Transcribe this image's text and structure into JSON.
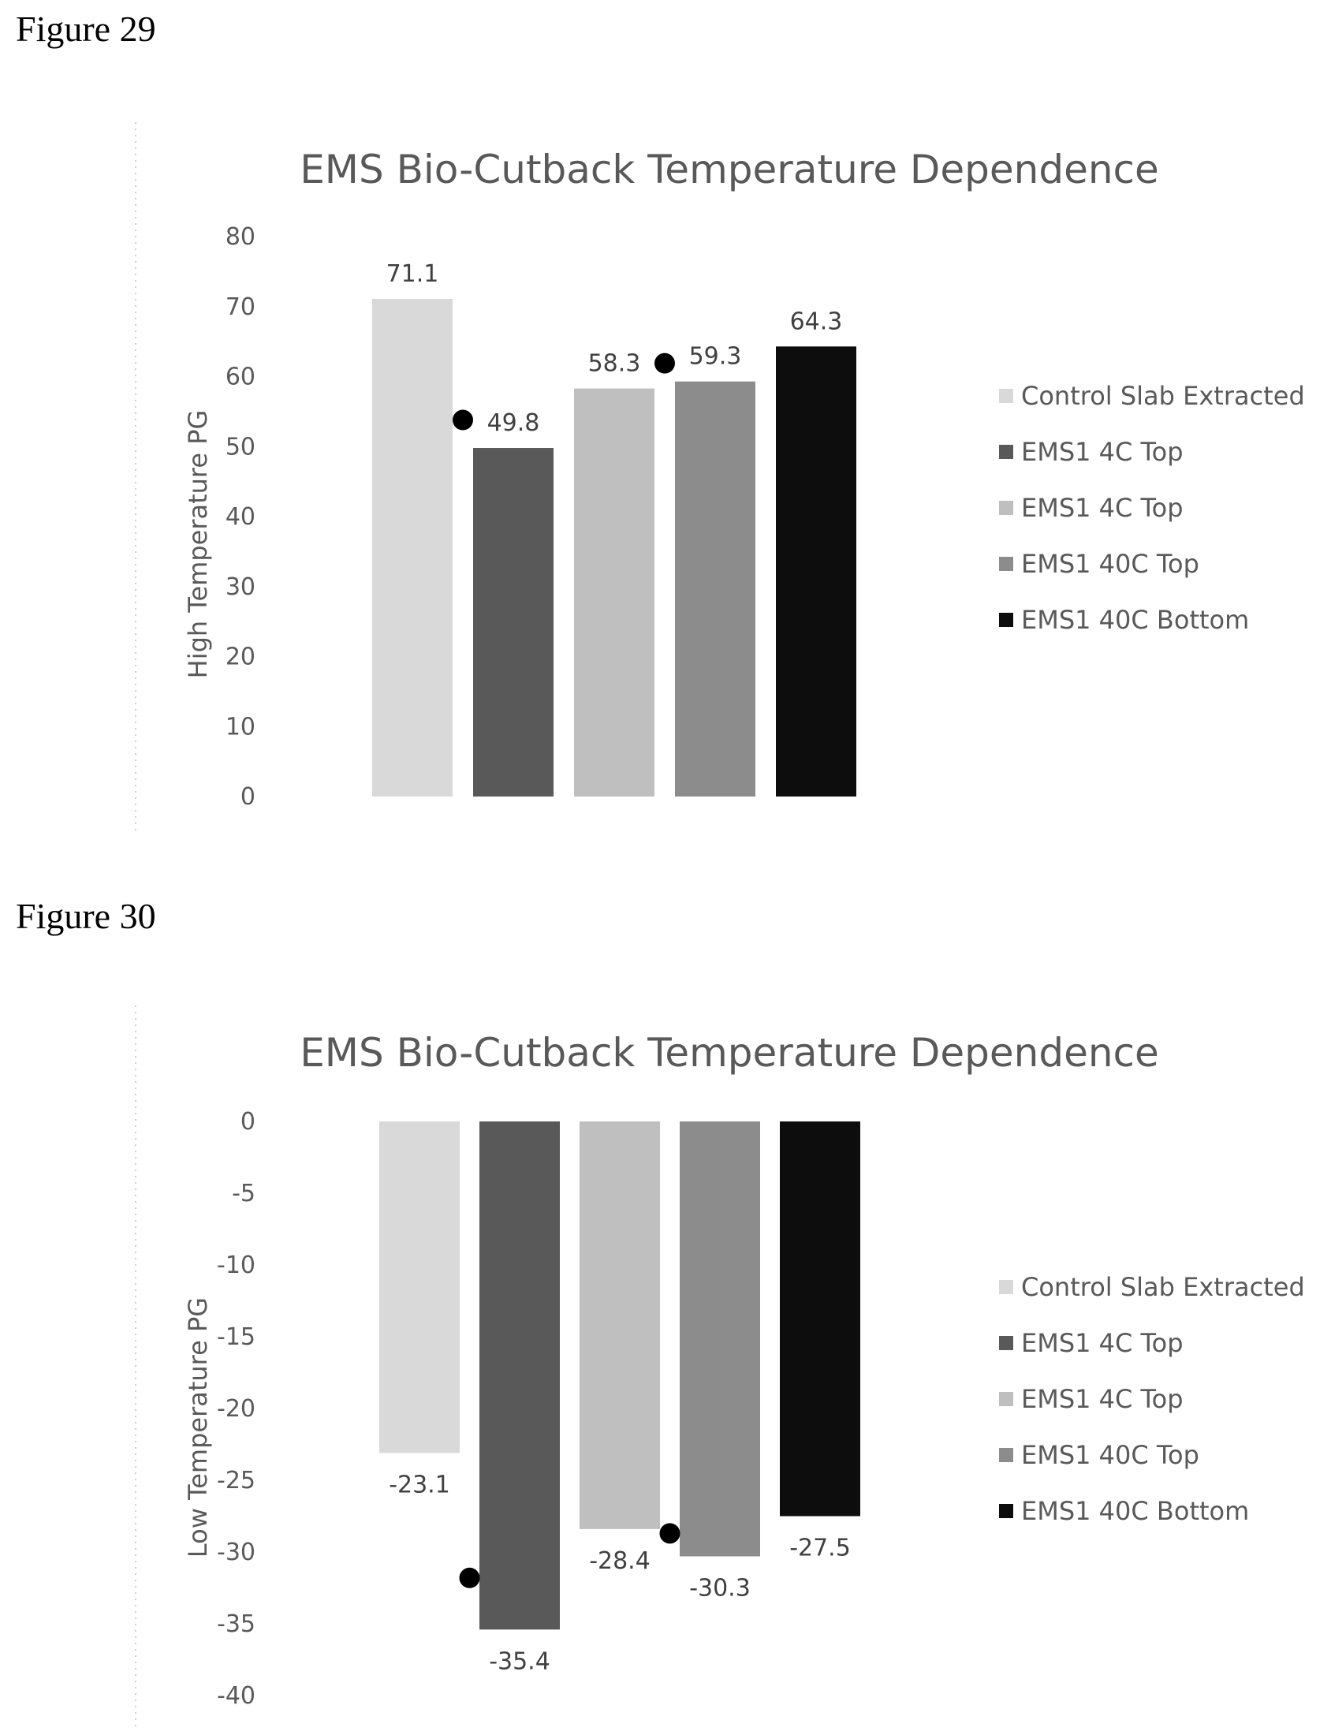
{
  "figures": [
    {
      "label": "Figure 29"
    },
    {
      "label": "Figure 30"
    }
  ],
  "legend_colors": [
    "#d9d9d9",
    "#595959",
    "#bfbfbf",
    "#8c8c8c",
    "#0d0d0d"
  ],
  "chart_data": [
    {
      "type": "bar",
      "title": "EMS Bio-Cutback Temperature Dependence",
      "xlabel": "",
      "ylabel": "High Temperature PG",
      "ylim": [
        0,
        80
      ],
      "yticks": [
        0,
        10,
        20,
        30,
        40,
        50,
        60,
        70,
        80
      ],
      "grid": false,
      "legend_position": "right",
      "series": [
        {
          "name": "Control Slab Extracted",
          "values": [
            71.1
          ],
          "label": "71.1",
          "color": "#d9d9d9"
        },
        {
          "name": "EMS1 4C Top",
          "values": [
            49.8
          ],
          "label": "49.8",
          "color": "#595959"
        },
        {
          "name": "EMS1 4C Top",
          "values": [
            58.3
          ],
          "label": "58.3",
          "color": "#bfbfbf"
        },
        {
          "name": "EMS1 40C Top",
          "values": [
            59.3
          ],
          "label": "59.3",
          "color": "#8c8c8c"
        },
        {
          "name": "EMS1 40C Bottom",
          "values": [
            64.3
          ],
          "label": "64.3",
          "color": "#0d0d0d"
        }
      ]
    },
    {
      "type": "bar",
      "title": "EMS Bio-Cutback Temperature Dependence",
      "xlabel": "",
      "ylabel": "Low Temperature PG",
      "ylim": [
        -40,
        0
      ],
      "yticks": [
        0,
        -5,
        -10,
        -15,
        -20,
        -25,
        -30,
        -35,
        -40
      ],
      "grid": false,
      "legend_position": "right",
      "series": [
        {
          "name": "Control Slab Extracted",
          "values": [
            -23.1
          ],
          "label": "-23.1",
          "color": "#d9d9d9"
        },
        {
          "name": "EMS1 4C Top",
          "values": [
            -35.4
          ],
          "label": "-35.4",
          "color": "#595959"
        },
        {
          "name": "EMS1 4C Top",
          "values": [
            -28.4
          ],
          "label": "-28.4",
          "color": "#bfbfbf"
        },
        {
          "name": "EMS1 40C Top",
          "values": [
            -30.3
          ],
          "label": "-30.3",
          "color": "#8c8c8c"
        },
        {
          "name": "EMS1 40C Bottom",
          "values": [
            -27.5
          ],
          "label": "-27.5",
          "color": "#0d0d0d"
        }
      ]
    }
  ]
}
